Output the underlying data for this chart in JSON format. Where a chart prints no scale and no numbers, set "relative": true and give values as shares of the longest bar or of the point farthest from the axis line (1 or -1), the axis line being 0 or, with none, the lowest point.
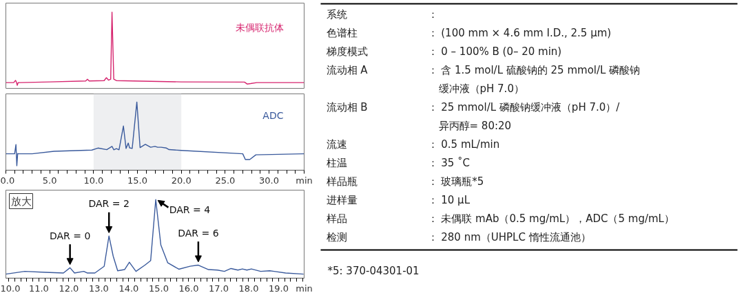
{
  "chart_data": [
    {
      "type": "line",
      "relative": true,
      "x": [
        0,
        0.9,
        1.1,
        1.2,
        1.3,
        1.4,
        1.6,
        5,
        9.1,
        9.3,
        9.5,
        11.2,
        11.46,
        11.7,
        11.95,
        12.1,
        12.3,
        12.6,
        20,
        27.2,
        27.5,
        27.9,
        28.6,
        34
      ],
      "series": [
        {
          "name": "未偶联抗体",
          "color": "#d6246e",
          "values": [
            0.076,
            0.076,
            0.105,
            0.082,
            0.04,
            0.074,
            0.076,
            0.085,
            0.097,
            0.12,
            0.097,
            0.102,
            0.14,
            0.108,
            0.12,
            1,
            0.12,
            0.102,
            0.085,
            0.082,
            0.057,
            0.063,
            0.076,
            0.076
          ]
        }
      ],
      "xlim": [
        0,
        34
      ],
      "tick_labels": false
    },
    {
      "type": "line",
      "relative": true,
      "x": [
        0,
        1.0,
        1.15,
        1.25,
        1.35,
        1.5,
        3,
        5.5,
        9.8,
        10.5,
        11.5,
        12.1,
        12.3,
        12.6,
        12.9,
        13.4,
        13.7,
        13.95,
        14.1,
        14.4,
        14.93,
        15.3,
        15.9,
        16.5,
        17.0,
        17.3,
        17.7,
        18.3,
        18.6,
        20,
        27,
        27.3,
        27.8,
        28.5,
        34
      ],
      "series": [
        {
          "name": "ADC",
          "color": "#3a5a9c",
          "values": [
            0.241,
            0.241,
            0.376,
            0.066,
            0.244,
            0.241,
            0.241,
            0.277,
            0.295,
            0.325,
            0.302,
            0.349,
            0.3,
            0.317,
            0.3,
            0.648,
            0.319,
            0.398,
            0.328,
            0.319,
            1,
            0.332,
            0.379,
            0.337,
            0.349,
            0.337,
            0.337,
            0.325,
            0.302,
            0.29,
            0.241,
            0.157,
            0.157,
            0.226,
            0.241
          ]
        }
      ],
      "xlim": [
        0,
        34
      ],
      "xticks": [
        {
          "value": 0,
          "label": "0.0"
        },
        {
          "value": 1,
          "label": null
        },
        {
          "value": 2,
          "label": null
        },
        {
          "value": 3,
          "label": null
        },
        {
          "value": 4,
          "label": null
        },
        {
          "value": 5,
          "label": "5.0"
        },
        {
          "value": 6,
          "label": null
        },
        {
          "value": 7,
          "label": null
        },
        {
          "value": 8,
          "label": null
        },
        {
          "value": 9,
          "label": null
        },
        {
          "value": 10,
          "label": "10.0"
        },
        {
          "value": 11,
          "label": null
        },
        {
          "value": 12,
          "label": null
        },
        {
          "value": 13,
          "label": null
        },
        {
          "value": 14,
          "label": null
        },
        {
          "value": 15,
          "label": "15.0"
        },
        {
          "value": 16,
          "label": null
        },
        {
          "value": 17,
          "label": null
        },
        {
          "value": 18,
          "label": null
        },
        {
          "value": 19,
          "label": null
        },
        {
          "value": 20,
          "label": "20.0"
        },
        {
          "value": 21,
          "label": null
        },
        {
          "value": 22,
          "label": null
        },
        {
          "value": 23,
          "label": null
        },
        {
          "value": 24,
          "label": null
        },
        {
          "value": 25,
          "label": "25.0"
        },
        {
          "value": 26,
          "label": null
        },
        {
          "value": 27,
          "label": null
        },
        {
          "value": 28,
          "label": null
        },
        {
          "value": 29,
          "label": null
        },
        {
          "value": 30,
          "label": "30.0"
        },
        {
          "value": 31,
          "label": null
        },
        {
          "value": 32,
          "label": null
        },
        {
          "value": 33,
          "label": null
        },
        {
          "value": 34,
          "label": null
        }
      ],
      "xlabel": "min",
      "bands": [
        {
          "axis": "x",
          "from": 10.0,
          "to": 20.0,
          "color": "#eeeff1"
        }
      ]
    },
    {
      "type": "line",
      "relative": true,
      "x": [
        9.9,
        10.53,
        11.21,
        11.82,
        12.04,
        12.19,
        12.5,
        12.61,
        12.87,
        13.18,
        13.34,
        13.48,
        13.63,
        13.86,
        14.02,
        14.24,
        14.54,
        14.73,
        14.9,
        15.07,
        15.3,
        15.67,
        16.05,
        16.32,
        16.66,
        16.96,
        17.19,
        17.41,
        17.64,
        17.79,
        17.94,
        18.09,
        18.4,
        18.7,
        18.85,
        19.23,
        19.83
      ],
      "series": [
        {
          "color": "#3a5a9c",
          "values": [
            0.051,
            0.086,
            0.074,
            0.066,
            0.132,
            0.066,
            0.086,
            0.066,
            0.066,
            0.151,
            0.537,
            0.28,
            0.094,
            0.109,
            0.203,
            0.086,
            0.166,
            0.223,
            1,
            0.422,
            0.195,
            0.114,
            0.152,
            0.166,
            0.109,
            0.103,
            0.086,
            0.123,
            0.103,
            0.117,
            0.103,
            0.117,
            0.086,
            0.094,
            0.086,
            0.066,
            0.051
          ]
        }
      ],
      "xlim": [
        9.9,
        19.85
      ],
      "xticks": [
        {
          "value": 10.0,
          "label": "10.0"
        },
        {
          "value": 10.2,
          "label": null
        },
        {
          "value": 10.4,
          "label": null
        },
        {
          "value": 10.6,
          "label": null
        },
        {
          "value": 10.8,
          "label": null
        },
        {
          "value": 11.0,
          "label": "11.0"
        },
        {
          "value": 11.2,
          "label": null
        },
        {
          "value": 11.4,
          "label": null
        },
        {
          "value": 11.6,
          "label": null
        },
        {
          "value": 11.8,
          "label": null
        },
        {
          "value": 12.0,
          "label": "12.0"
        },
        {
          "value": 12.2,
          "label": null
        },
        {
          "value": 12.4,
          "label": null
        },
        {
          "value": 12.6,
          "label": null
        },
        {
          "value": 12.8,
          "label": null
        },
        {
          "value": 13.0,
          "label": "13.0"
        },
        {
          "value": 13.2,
          "label": null
        },
        {
          "value": 13.4,
          "label": null
        },
        {
          "value": 13.6,
          "label": null
        },
        {
          "value": 13.8,
          "label": null
        },
        {
          "value": 14.0,
          "label": "14.0"
        },
        {
          "value": 14.2,
          "label": null
        },
        {
          "value": 14.4,
          "label": null
        },
        {
          "value": 14.6,
          "label": null
        },
        {
          "value": 14.8,
          "label": null
        },
        {
          "value": 15.0,
          "label": "15.0"
        },
        {
          "value": 15.2,
          "label": null
        },
        {
          "value": 15.4,
          "label": null
        },
        {
          "value": 15.6,
          "label": null
        },
        {
          "value": 15.8,
          "label": null
        },
        {
          "value": 16.0,
          "label": "16.0"
        },
        {
          "value": 16.2,
          "label": null
        },
        {
          "value": 16.4,
          "label": null
        },
        {
          "value": 16.6,
          "label": null
        },
        {
          "value": 16.8,
          "label": null
        },
        {
          "value": 17.0,
          "label": "17.0"
        },
        {
          "value": 17.2,
          "label": null
        },
        {
          "value": 17.4,
          "label": null
        },
        {
          "value": 17.6,
          "label": null
        },
        {
          "value": 17.8,
          "label": null
        },
        {
          "value": 18.0,
          "label": "18.0"
        },
        {
          "value": 18.2,
          "label": null
        },
        {
          "value": 18.4,
          "label": null
        },
        {
          "value": 18.6,
          "label": null
        },
        {
          "value": 18.8,
          "label": null
        },
        {
          "value": 19.0,
          "label": "19.0"
        },
        {
          "value": 19.2,
          "label": null
        },
        {
          "value": 19.4,
          "label": null
        },
        {
          "value": 19.6,
          "label": null
        },
        {
          "value": 19.8,
          "label": null
        }
      ],
      "xlabel": "min",
      "annotations": [
        "放大",
        {
          "text": "DAR = 0",
          "x": 12.04,
          "y": 0.132
        },
        {
          "text": "DAR = 2",
          "x": 13.34,
          "y": 0.537
        },
        {
          "text": "DAR = 4",
          "x": 14.9,
          "y": 1
        },
        {
          "text": "DAR = 6",
          "x": 16.32,
          "y": 0.166
        }
      ]
    },
    {
      "type": "other",
      "categories": [
        "系统",
        "色谱柱",
        "梯度模式",
        "流动相 A",
        null,
        "流动相 B",
        null,
        "流速",
        "柱温",
        "样品瓶",
        "进样量",
        "样品",
        "检测"
      ],
      "annotations": [
        "：",
        "： (100 mm × 4.6 mm I.D., 2.5 μm)",
        "： 0 – 100% B (0– 20 min)",
        "： 含 1.5 mol/L 硫酸钠的 25 mmol/L 磷酸钠",
        "缓冲液（pH 7.0）",
        "： 25 mmol/L 磷酸钠缓冲液（pH 7.0）/",
        "异丙醇= 80:20",
        "： 0.5 mL/min",
        "： 35 ˚C",
        "： 玻璃瓶*5",
        "： 10 μL",
        "： 未偶联 mAb（0.5 mg/mL），ADC（5 mg/mL）",
        "： 280 nm（UHPLC 惰性流通池）",
        "*5: 370-04301-01"
      ]
    }
  ]
}
